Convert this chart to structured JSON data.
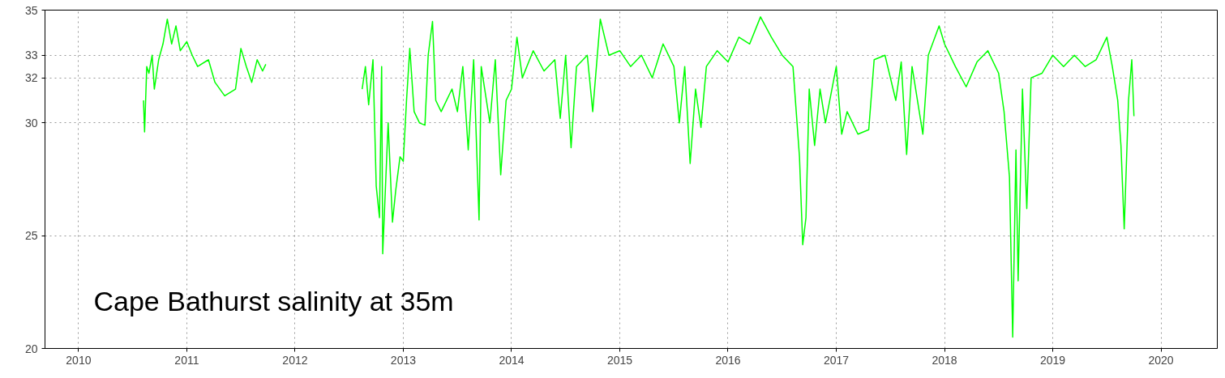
{
  "chart_data": {
    "type": "line",
    "xlim": [
      2009.69,
      2020.52
    ],
    "ylim": [
      20,
      35
    ],
    "xticks": [
      2010,
      2011,
      2012,
      2013,
      2014,
      2015,
      2016,
      2017,
      2018,
      2019,
      2020
    ],
    "yticks": [
      20,
      25,
      30,
      32,
      33,
      35
    ],
    "grid": true,
    "marker": "none",
    "line_style": "solid",
    "annotations": [
      "Cape Bathurst salinity at 35m"
    ],
    "x": [
      2010.6,
      2010.61,
      2010.63,
      2010.65,
      2010.68,
      2010.7,
      2010.74,
      2010.78,
      2010.82,
      2010.86,
      2010.9,
      2010.94,
      2011.0,
      2011.05,
      2011.1,
      2011.2,
      2011.26,
      2011.35,
      2011.45,
      2011.5,
      2011.55,
      2011.6,
      2011.65,
      2011.7,
      2011.73,
      2012.2,
      2012.62,
      2012.65,
      2012.68,
      2012.72,
      2012.75,
      2012.78,
      2012.8,
      2012.81,
      2012.86,
      2012.9,
      2012.93,
      2012.97,
      2013.0,
      2013.03,
      2013.06,
      2013.1,
      2013.15,
      2013.2,
      2013.23,
      2013.27,
      2013.3,
      2013.35,
      2013.45,
      2013.5,
      2013.55,
      2013.6,
      2013.65,
      2013.7,
      2013.72,
      2013.8,
      2013.85,
      2013.9,
      2013.95,
      2014.0,
      2014.05,
      2014.1,
      2014.2,
      2014.3,
      2014.4,
      2014.45,
      2014.5,
      2014.55,
      2014.6,
      2014.7,
      2014.75,
      2014.82,
      2014.9,
      2015.0,
      2015.1,
      2015.2,
      2015.3,
      2015.4,
      2015.5,
      2015.55,
      2015.6,
      2015.65,
      2015.7,
      2015.75,
      2015.8,
      2015.9,
      2016.0,
      2016.1,
      2016.2,
      2016.3,
      2016.4,
      2016.5,
      2016.6,
      2016.63,
      2016.66,
      2016.69,
      2016.72,
      2016.75,
      2016.8,
      2016.85,
      2016.9,
      2017.0,
      2017.05,
      2017.1,
      2017.2,
      2017.3,
      2017.35,
      2017.45,
      2017.55,
      2017.6,
      2017.65,
      2017.7,
      2017.8,
      2017.85,
      2017.95,
      2018.0,
      2018.1,
      2018.2,
      2018.3,
      2018.4,
      2018.5,
      2018.55,
      2018.6,
      2018.63,
      2018.66,
      2018.68,
      2018.72,
      2018.76,
      2018.8,
      2018.9,
      2019.0,
      2019.1,
      2019.2,
      2019.3,
      2019.4,
      2019.5,
      2019.55,
      2019.6,
      2019.63,
      2019.66,
      2019.7,
      2019.73,
      2019.75
    ],
    "series": [
      {
        "color": "#00ff00",
        "values": [
          31.0,
          29.6,
          32.5,
          32.2,
          33.0,
          31.5,
          32.8,
          33.5,
          34.6,
          33.5,
          34.3,
          33.2,
          33.6,
          33.0,
          32.5,
          32.8,
          31.8,
          31.2,
          31.5,
          33.3,
          32.5,
          31.8,
          32.8,
          32.3,
          32.6,
          null,
          31.5,
          32.5,
          30.8,
          32.8,
          27.2,
          25.8,
          32.5,
          24.2,
          30.0,
          25.6,
          27.0,
          28.5,
          28.3,
          31.0,
          33.3,
          30.5,
          30.0,
          29.9,
          33.0,
          34.5,
          31.0,
          30.5,
          31.5,
          30.5,
          32.5,
          28.8,
          32.8,
          25.7,
          32.5,
          30.0,
          32.8,
          27.7,
          31.0,
          31.5,
          33.8,
          32.0,
          33.2,
          32.3,
          32.8,
          30.2,
          33.0,
          28.9,
          32.5,
          33.0,
          30.5,
          34.6,
          33.0,
          33.2,
          32.5,
          33.0,
          32.0,
          33.5,
          32.5,
          30.0,
          32.5,
          28.2,
          31.5,
          29.8,
          32.5,
          33.2,
          32.7,
          33.8,
          33.5,
          34.7,
          33.8,
          33.0,
          32.5,
          30.5,
          28.5,
          24.6,
          25.8,
          31.5,
          29.0,
          31.5,
          30.0,
          32.5,
          29.5,
          30.5,
          29.5,
          29.7,
          32.8,
          33.0,
          31.0,
          32.7,
          28.6,
          32.5,
          29.5,
          33.0,
          34.3,
          33.5,
          32.5,
          31.6,
          32.7,
          33.2,
          32.2,
          30.5,
          27.6,
          20.5,
          28.8,
          23.0,
          31.5,
          26.2,
          32.0,
          32.2,
          33.0,
          32.5,
          33.0,
          32.5,
          32.8,
          33.8,
          32.5,
          31.0,
          29.0,
          25.3,
          31.0,
          32.8,
          30.3
        ]
      }
    ]
  }
}
